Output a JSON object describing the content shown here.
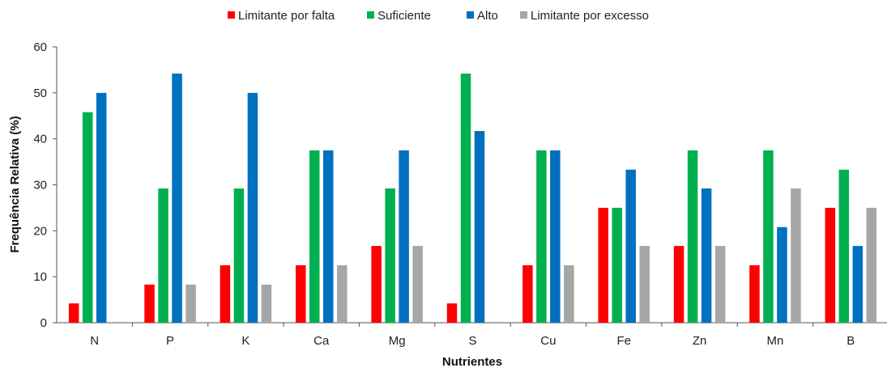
{
  "chart_data": {
    "type": "bar",
    "title": "",
    "xlabel": "Nutrientes",
    "ylabel": "Frequência Relativa (%)",
    "ylim": [
      0,
      60
    ],
    "yticks": [
      0,
      10,
      20,
      30,
      40,
      50,
      60
    ],
    "grid": false,
    "legend_position": "top",
    "categories": [
      "N",
      "P",
      "K",
      "Ca",
      "Mg",
      "S",
      "Cu",
      "Fe",
      "Zn",
      "Mn",
      "B"
    ],
    "series": [
      {
        "name": "Limitante por falta",
        "color": "#ff0000",
        "values": [
          4.2,
          8.3,
          12.5,
          12.5,
          16.7,
          4.2,
          12.5,
          25.0,
          16.7,
          12.5,
          25.0
        ]
      },
      {
        "name": "Suficiente",
        "color": "#00b050",
        "values": [
          45.8,
          29.2,
          29.2,
          37.5,
          29.2,
          54.2,
          37.5,
          25.0,
          37.5,
          37.5,
          33.3
        ]
      },
      {
        "name": "Alto",
        "color": "#0070c0",
        "values": [
          50.0,
          54.2,
          50.0,
          37.5,
          37.5,
          41.7,
          37.5,
          33.3,
          29.2,
          20.8,
          16.7
        ]
      },
      {
        "name": "Limitante por excesso",
        "color": "#a6a6a6",
        "values": [
          0,
          8.3,
          8.3,
          12.5,
          16.7,
          0,
          12.5,
          16.7,
          16.7,
          29.2,
          25.0
        ]
      }
    ]
  }
}
